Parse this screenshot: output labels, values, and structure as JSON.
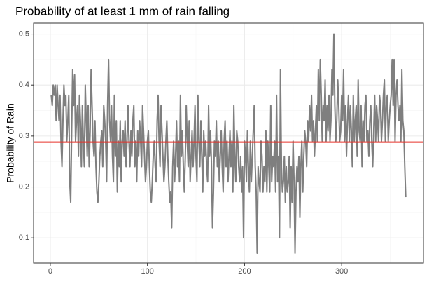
{
  "chart_data": {
    "type": "line",
    "title": "Probability of at least 1 mm of rain falling",
    "y_label": "Probability of Rain",
    "xlim": [
      -17.25,
      384.25
    ],
    "xticks": [
      0,
      100,
      200,
      300
    ],
    "xminorticks": [
      50,
      150,
      250,
      350
    ],
    "ylim": [
      0.0507,
      0.5214
    ],
    "yticks": [
      0.1,
      0.2,
      0.3,
      0.4,
      0.5
    ],
    "yminorticks": [
      0.15,
      0.25,
      0.35,
      0.45
    ],
    "grid": true,
    "hline": {
      "value": 0.288,
      "color": "#e8332a"
    },
    "x": [
      1,
      2,
      3,
      4,
      5,
      6,
      7,
      8,
      9,
      10,
      11,
      12,
      13,
      14,
      15,
      16,
      17,
      18,
      19,
      20,
      21,
      22,
      23,
      24,
      25,
      26,
      27,
      28,
      29,
      30,
      31,
      32,
      33,
      34,
      35,
      36,
      37,
      38,
      39,
      40,
      41,
      42,
      43,
      44,
      45,
      46,
      47,
      48,
      49,
      50,
      51,
      52,
      53,
      54,
      55,
      56,
      57,
      58,
      59,
      60,
      61,
      62,
      63,
      64,
      65,
      66,
      67,
      68,
      69,
      70,
      71,
      72,
      73,
      74,
      75,
      76,
      77,
      78,
      79,
      80,
      81,
      82,
      83,
      84,
      85,
      86,
      87,
      88,
      89,
      90,
      91,
      92,
      93,
      94,
      95,
      96,
      97,
      98,
      99,
      100,
      101,
      102,
      103,
      104,
      105,
      106,
      107,
      108,
      109,
      110,
      111,
      112,
      113,
      114,
      115,
      116,
      117,
      118,
      119,
      120,
      121,
      122,
      123,
      124,
      125,
      126,
      127,
      128,
      129,
      130,
      131,
      132,
      133,
      134,
      135,
      136,
      137,
      138,
      139,
      140,
      141,
      142,
      143,
      144,
      145,
      146,
      147,
      148,
      149,
      150,
      151,
      152,
      153,
      154,
      155,
      156,
      157,
      158,
      159,
      160,
      161,
      162,
      163,
      164,
      165,
      166,
      167,
      168,
      169,
      170,
      171,
      172,
      173,
      174,
      175,
      176,
      177,
      178,
      179,
      180,
      181,
      182,
      183,
      184,
      185,
      186,
      187,
      188,
      189,
      190,
      191,
      192,
      193,
      194,
      195,
      196,
      197,
      198,
      199,
      200,
      201,
      202,
      203,
      204,
      205,
      206,
      207,
      208,
      209,
      210,
      211,
      212,
      213,
      214,
      215,
      216,
      217,
      218,
      219,
      220,
      221,
      222,
      223,
      224,
      225,
      226,
      227,
      228,
      229,
      230,
      231,
      232,
      233,
      234,
      235,
      236,
      237,
      238,
      239,
      240,
      241,
      242,
      243,
      244,
      245,
      246,
      247,
      248,
      249,
      250,
      251,
      252,
      253,
      254,
      255,
      256,
      257,
      258,
      259,
      260,
      261,
      262,
      263,
      264,
      265,
      266,
      267,
      268,
      269,
      270,
      271,
      272,
      273,
      274,
      275,
      276,
      277,
      278,
      279,
      280,
      281,
      282,
      283,
      284,
      285,
      286,
      287,
      288,
      289,
      290,
      291,
      292,
      293,
      294,
      295,
      296,
      297,
      298,
      299,
      300,
      301,
      302,
      303,
      304,
      305,
      306,
      307,
      308,
      309,
      310,
      311,
      312,
      313,
      314,
      315,
      316,
      317,
      318,
      319,
      320,
      321,
      322,
      323,
      324,
      325,
      326,
      327,
      328,
      329,
      330,
      331,
      332,
      333,
      334,
      335,
      336,
      337,
      338,
      339,
      340,
      341,
      342,
      343,
      344,
      345,
      346,
      347,
      348,
      349,
      350,
      351,
      352,
      353,
      354,
      355,
      356,
      357,
      358,
      359,
      360,
      361,
      362,
      363,
      364,
      365,
      366
    ],
    "series": [
      {
        "color": "#7f7f7f",
        "values": [
          0.38,
          0.36,
          0.4,
          0.38,
          0.4,
          0.33,
          0.4,
          0.36,
          0.33,
          0.38,
          0.29,
          0.24,
          0.33,
          0.4,
          0.36,
          0.38,
          0.29,
          0.33,
          0.38,
          0.21,
          0.17,
          0.31,
          0.43,
          0.36,
          0.42,
          0.29,
          0.33,
          0.36,
          0.26,
          0.38,
          0.33,
          0.24,
          0.36,
          0.29,
          0.24,
          0.4,
          0.33,
          0.26,
          0.36,
          0.24,
          0.31,
          0.43,
          0.36,
          0.29,
          0.26,
          0.33,
          0.24,
          0.19,
          0.17,
          0.21,
          0.26,
          0.29,
          0.31,
          0.24,
          0.36,
          0.33,
          0.29,
          0.21,
          0.36,
          0.45,
          0.33,
          0.29,
          0.36,
          0.26,
          0.21,
          0.38,
          0.26,
          0.33,
          0.19,
          0.29,
          0.24,
          0.33,
          0.21,
          0.29,
          0.31,
          0.26,
          0.33,
          0.24,
          0.29,
          0.36,
          0.29,
          0.24,
          0.31,
          0.26,
          0.33,
          0.36,
          0.24,
          0.29,
          0.21,
          0.31,
          0.26,
          0.33,
          0.29,
          0.24,
          0.36,
          0.31,
          0.26,
          0.21,
          0.24,
          0.29,
          0.31,
          0.24,
          0.19,
          0.17,
          0.21,
          0.26,
          0.29,
          0.24,
          0.21,
          0.33,
          0.38,
          0.29,
          0.24,
          0.36,
          0.31,
          0.26,
          0.21,
          0.24,
          0.29,
          0.33,
          0.26,
          0.21,
          0.17,
          0.19,
          0.12,
          0.24,
          0.29,
          0.21,
          0.26,
          0.33,
          0.24,
          0.29,
          0.21,
          0.38,
          0.26,
          0.31,
          0.24,
          0.19,
          0.26,
          0.36,
          0.29,
          0.24,
          0.33,
          0.21,
          0.26,
          0.31,
          0.24,
          0.29,
          0.36,
          0.26,
          0.21,
          0.38,
          0.29,
          0.24,
          0.33,
          0.26,
          0.19,
          0.31,
          0.26,
          0.29,
          0.24,
          0.21,
          0.36,
          0.26,
          0.31,
          0.24,
          0.12,
          0.19,
          0.29,
          0.26,
          0.33,
          0.24,
          0.29,
          0.21,
          0.26,
          0.31,
          0.24,
          0.19,
          0.29,
          0.33,
          0.24,
          0.29,
          0.21,
          0.26,
          0.31,
          0.24,
          0.29,
          0.19,
          0.36,
          0.26,
          0.21,
          0.31,
          0.29,
          0.24,
          0.21,
          0.26,
          0.19,
          0.24,
          0.1,
          0.29,
          0.26,
          0.21,
          0.31,
          0.24,
          0.19,
          0.29,
          0.21,
          0.26,
          0.31,
          0.36,
          0.24,
          0.19,
          0.07,
          0.24,
          0.21,
          0.19,
          0.29,
          0.26,
          0.19,
          0.24,
          0.21,
          0.31,
          0.19,
          0.29,
          0.24,
          0.19,
          0.36,
          0.21,
          0.26,
          0.24,
          0.29,
          0.19,
          0.38,
          0.21,
          0.26,
          0.1,
          0.43,
          0.24,
          0.19,
          0.21,
          0.26,
          0.17,
          0.24,
          0.19,
          0.21,
          0.26,
          0.12,
          0.24,
          0.17,
          0.29,
          0.21,
          0.07,
          0.19,
          0.24,
          0.21,
          0.26,
          0.14,
          0.24,
          0.29,
          0.19,
          0.26,
          0.31,
          0.29,
          0.24,
          0.33,
          0.29,
          0.36,
          0.31,
          0.38,
          0.29,
          0.33,
          0.26,
          0.31,
          0.36,
          0.29,
          0.43,
          0.33,
          0.45,
          0.38,
          0.29,
          0.36,
          0.33,
          0.41,
          0.29,
          0.36,
          0.31,
          0.38,
          0.29,
          0.33,
          0.43,
          0.38,
          0.5,
          0.36,
          0.29,
          0.33,
          0.41,
          0.36,
          0.29,
          0.31,
          0.38,
          0.33,
          0.43,
          0.29,
          0.36,
          0.26,
          0.33,
          0.38,
          0.29,
          0.36,
          0.31,
          0.24,
          0.38,
          0.29,
          0.33,
          0.36,
          0.26,
          0.41,
          0.31,
          0.29,
          0.36,
          0.24,
          0.33,
          0.29,
          0.36,
          0.38,
          0.29,
          0.31,
          0.26,
          0.33,
          0.36,
          0.29,
          0.24,
          0.31,
          0.38,
          0.29,
          0.36,
          0.33,
          0.29,
          0.38,
          0.36,
          0.29,
          0.33,
          0.38,
          0.41,
          0.29,
          0.36,
          0.38,
          0.29,
          0.33,
          0.36,
          0.38,
          0.45,
          0.36,
          0.45,
          0.29,
          0.38,
          0.41,
          0.36,
          0.33,
          0.36,
          0.29,
          0.43,
          0.33,
          0.31,
          0.24,
          0.18
        ]
      }
    ]
  }
}
